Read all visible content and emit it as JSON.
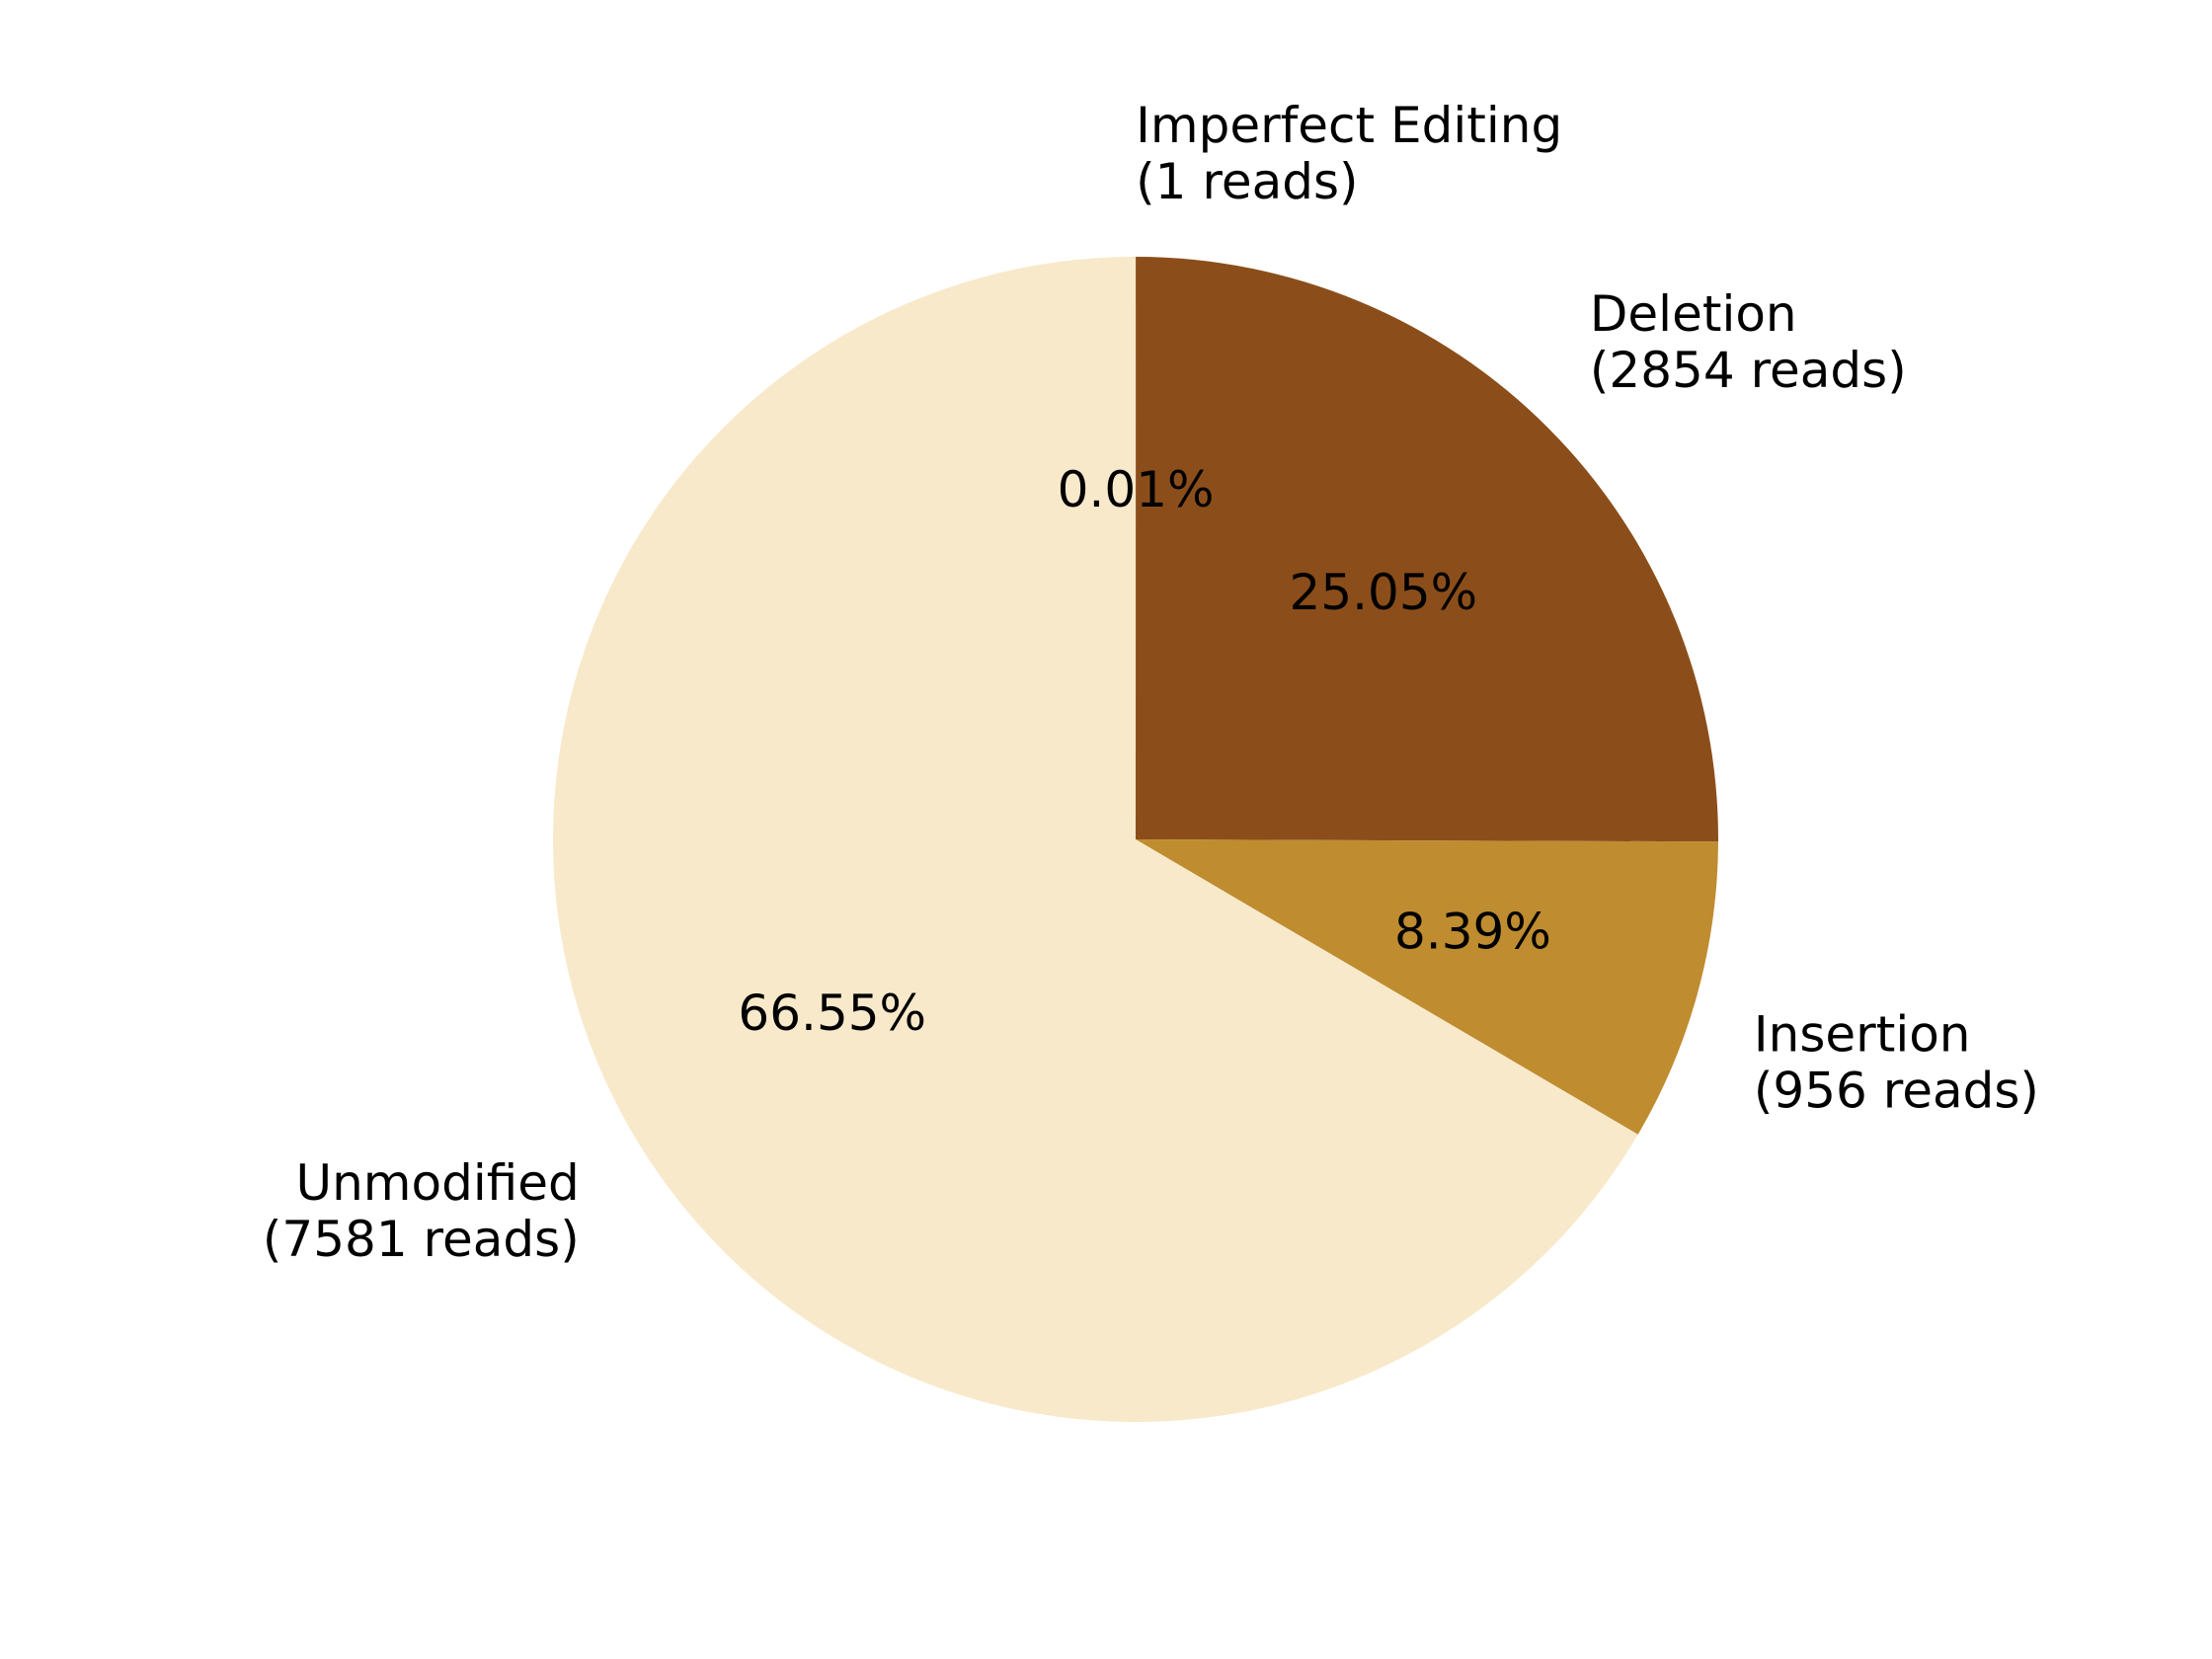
{
  "chart_data": {
    "type": "pie",
    "title": "",
    "start_angle_deg": 90,
    "direction": "clockwise",
    "slices": [
      {
        "label": "Imperfect Editing",
        "reads_label": "(1 reads)",
        "value": 1,
        "pct_label": "0.01%",
        "color": "#8B4513"
      },
      {
        "label": "Deletion",
        "reads_label": "(2854 reads)",
        "value": 2854,
        "pct_label": "25.05%",
        "color": "#8B4E1A"
      },
      {
        "label": "Insertion",
        "reads_label": "(956 reads)",
        "value": 956,
        "pct_label": "8.39%",
        "color": "#BF8C30"
      },
      {
        "label": "Unmodified",
        "reads_label": "(7581 reads)",
        "value": 7581,
        "pct_label": "66.55%",
        "color": "#F8E9CA"
      }
    ]
  }
}
